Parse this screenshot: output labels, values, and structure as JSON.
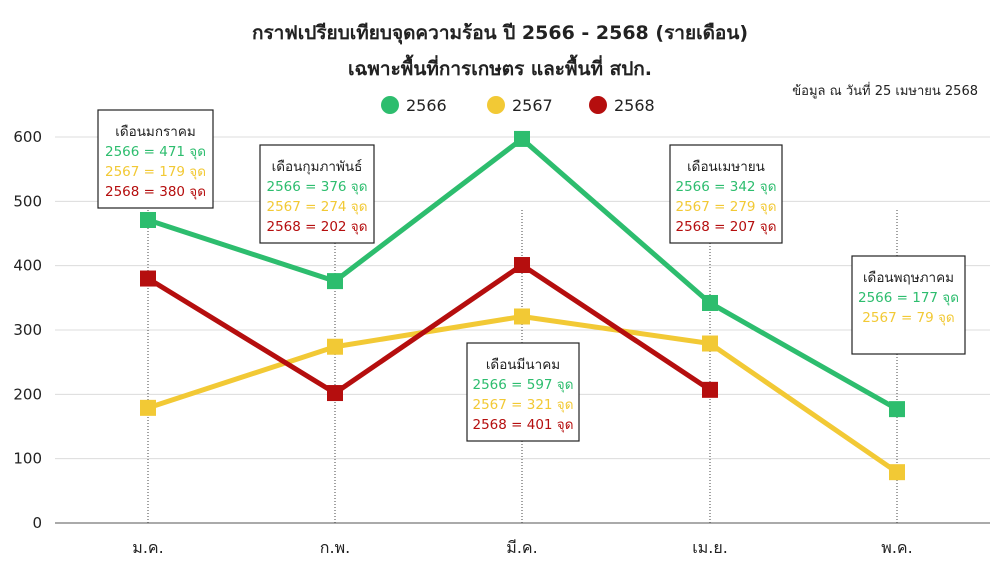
{
  "chart_data": {
    "type": "line",
    "title": "กราฟเปรียบเทียบจุดความร้อน ปี 2566 - 2568 (รายเดือน)",
    "subtitle": "เฉพาะพื้นที่การเกษตร และพื้นที่ สปก.",
    "source_note": "ข้อมูล ณ วันที่ 25 เมษายน 2568",
    "categories": [
      "ม.ค.",
      "ก.พ.",
      "มี.ค.",
      "เม.ย.",
      "พ.ค."
    ],
    "ylim": [
      0,
      600
    ],
    "yticks": [
      0,
      100,
      200,
      300,
      400,
      500,
      600
    ],
    "grid": true,
    "legend_position": "top-center",
    "series": [
      {
        "name": "2566",
        "color": "#2dbd6e",
        "values": [
          471,
          376,
          597,
          342,
          177
        ]
      },
      {
        "name": "2567",
        "color": "#f2c935",
        "values": [
          179,
          274,
          321,
          279,
          79
        ]
      },
      {
        "name": "2568",
        "color": "#b50e0e",
        "values": [
          380,
          202,
          401,
          207,
          null
        ]
      }
    ],
    "annotations": [
      {
        "title": "เดือนมกราคม",
        "lines": [
          "2566 = 471 จุด",
          "2567 = 179 จุด",
          "2568 = 380 จุด"
        ]
      },
      {
        "title": "เดือนกุมภาพันธ์",
        "lines": [
          "2566 = 376 จุด",
          "2567 = 274 จุด",
          "2568 = 202 จุด"
        ]
      },
      {
        "title": "เดือนมีนาคม",
        "lines": [
          "2566 = 597 จุด",
          "2567 = 321 จุด",
          "2568 = 401 จุด"
        ]
      },
      {
        "title": "เดือนเมษายน",
        "lines": [
          "2566 = 342 จุด",
          "2567 = 279 จุด",
          "2568 = 207 จุด"
        ]
      },
      {
        "title": "เดือนพฤษภาคม",
        "lines": [
          "2566 = 177 จุด",
          "2567 = 79 จุด"
        ]
      }
    ]
  }
}
